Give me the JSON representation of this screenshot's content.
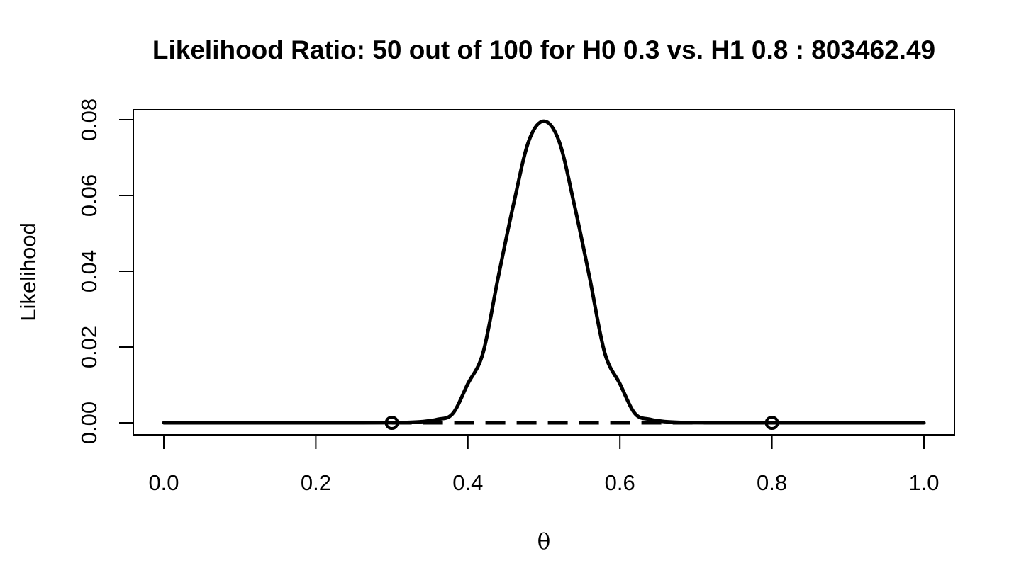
{
  "chart_data": {
    "type": "line",
    "title": "Likelihood Ratio: 50 out of 100 for H0 0.3 vs. H1 0.8 : 803462.49",
    "xlabel": "θ",
    "ylabel": "Likelihood",
    "xlim": [
      0,
      1
    ],
    "ylim": [
      0,
      0.08
    ],
    "x_ticks": [
      0.0,
      0.2,
      0.4,
      0.6,
      0.8,
      1.0
    ],
    "x_tick_labels": [
      "0.0",
      "0.2",
      "0.4",
      "0.6",
      "0.8",
      "1.0"
    ],
    "y_ticks": [
      0.0,
      0.02,
      0.04,
      0.06,
      0.08
    ],
    "y_tick_labels": [
      "0.00",
      "0.02",
      "0.04",
      "0.06",
      "0.08"
    ],
    "grid": false,
    "legend": "none",
    "likelihood_curve": {
      "successes": 50,
      "trials": 100,
      "x": [
        0.0,
        0.1,
        0.2,
        0.3,
        0.32,
        0.34,
        0.36,
        0.38,
        0.4,
        0.42,
        0.44,
        0.46,
        0.48,
        0.5,
        0.52,
        0.54,
        0.56,
        0.58,
        0.6,
        0.62,
        0.64,
        0.66,
        0.68,
        0.7,
        0.8,
        0.9,
        1.0
      ],
      "y": [
        0.0,
        0.0,
        0.0,
        2e-05,
        9e-05,
        0.0003,
        0.0009,
        0.0024,
        0.0103,
        0.0185,
        0.0385,
        0.0576,
        0.0743,
        0.0796,
        0.0743,
        0.0576,
        0.0385,
        0.0185,
        0.0103,
        0.0024,
        0.0009,
        0.0003,
        9e-05,
        2e-05,
        0.0,
        0.0,
        0.0
      ]
    },
    "hypotheses": [
      {
        "label": "H0",
        "theta": 0.3,
        "likelihood": 0.0
      },
      {
        "label": "H1",
        "theta": 0.8,
        "likelihood": 0.0
      }
    ],
    "dashed_segment": {
      "x_start": 0.3,
      "x_end": 0.8,
      "y": 0.0
    },
    "colors": {
      "line": "#000000",
      "background": "#ffffff"
    }
  }
}
